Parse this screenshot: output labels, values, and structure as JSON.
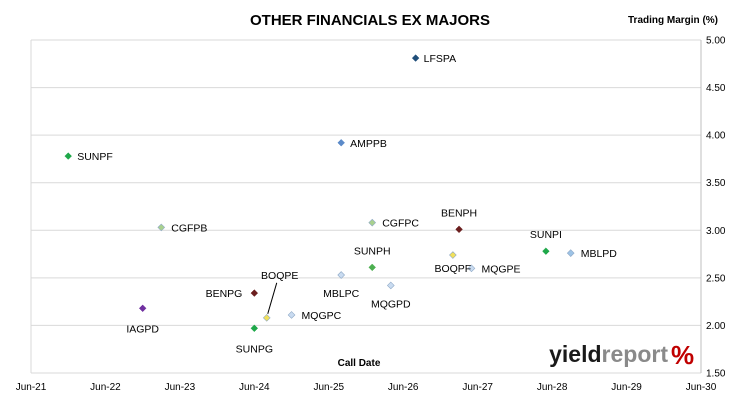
{
  "chart_data": {
    "type": "scatter",
    "title": "OTHER FINANCIALS EX MAJORS",
    "xlabel": "Call Date",
    "ylabel": "Trading Margin (%)",
    "xlim": [
      "2021-06",
      "2030-06"
    ],
    "ylim": [
      1.5,
      5.0
    ],
    "x_ticks": [
      "Jun-21",
      "Jun-22",
      "Jun-23",
      "Jun-24",
      "Jun-25",
      "Jun-26",
      "Jun-27",
      "Jun-28",
      "Jun-29",
      "Jun-30"
    ],
    "y_ticks": [
      "5.00",
      "4.50",
      "4.00",
      "3.50",
      "3.00",
      "2.50",
      "2.00",
      "1.50"
    ],
    "grid": "horizontal",
    "y_axis_side": "right",
    "points": [
      {
        "label": "LFSPA",
        "x": "2026-08",
        "y": 4.81,
        "color": "#1f4e79"
      },
      {
        "label": "AMPPB",
        "x": "2025-08",
        "y": 3.92,
        "color": "#5b8ac9"
      },
      {
        "label": "SUNPF",
        "x": "2021-12",
        "y": 3.78,
        "color": "#1fa84a"
      },
      {
        "label": "CGFPB",
        "x": "2023-03",
        "y": 3.03,
        "color": "#a9d18e"
      },
      {
        "label": "CGFPC",
        "x": "2026-01",
        "y": 3.08,
        "color": "#a9d18e"
      },
      {
        "label": "BENPH",
        "x": "2027-03",
        "y": 3.01,
        "color": "#6b1e1e"
      },
      {
        "label": "SUNPI",
        "x": "2028-05",
        "y": 2.78,
        "color": "#1fa84a"
      },
      {
        "label": "MBLPD",
        "x": "2028-09",
        "y": 2.76,
        "color": "#9dc3e6"
      },
      {
        "label": "BOQPF",
        "x": "2027-02",
        "y": 2.74,
        "color": "#f2e15a"
      },
      {
        "label": "MQGPE",
        "x": "2027-05",
        "y": 2.6,
        "color": "#c9dbf0"
      },
      {
        "label": "SUNPH",
        "x": "2026-01",
        "y": 2.61,
        "color": "#4caf50"
      },
      {
        "label": "MBLPC",
        "x": "2025-08",
        "y": 2.53,
        "color": "#c9dbf0"
      },
      {
        "label": "MQGPD",
        "x": "2026-04",
        "y": 2.42,
        "color": "#c9dbf0"
      },
      {
        "label": "BENPG",
        "x": "2024-06",
        "y": 2.34,
        "color": "#6b1e1e"
      },
      {
        "label": "IAGPD",
        "x": "2022-12",
        "y": 2.18,
        "color": "#7030a0"
      },
      {
        "label": "MQGPC",
        "x": "2024-12",
        "y": 2.11,
        "color": "#c9dbf0"
      },
      {
        "label": "BOQPE",
        "x": "2024-08",
        "y": 2.08,
        "color": "#f2e15a"
      },
      {
        "label": "SUNPG",
        "x": "2024-06",
        "y": 1.97,
        "color": "#1fa84a"
      }
    ]
  },
  "logo": {
    "part1": "yield",
    "part2": "report",
    "pct": "%",
    "dark_color": "#1a1a1a",
    "light_color": "#8a8a8a",
    "pct_color": "#c00000"
  }
}
